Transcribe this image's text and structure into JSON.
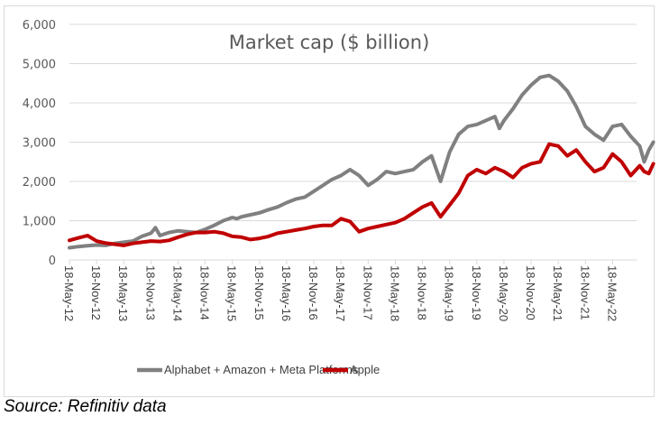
{
  "chart_data": {
    "type": "line",
    "title": "Market cap ($ billion)",
    "xlabel": "",
    "ylabel": "",
    "ylim": [
      0,
      6000
    ],
    "yticks": [
      0,
      1000,
      2000,
      3000,
      4000,
      5000,
      6000
    ],
    "ytick_labels": [
      "0",
      "1,000",
      "2,000",
      "3,000",
      "4,000",
      "5,000",
      "6,000"
    ],
    "xtick_labels": [
      "18-May-12",
      "18-Nov-12",
      "18-May-13",
      "18-Nov-13",
      "18-May-14",
      "18-Nov-14",
      "18-May-15",
      "18-Nov-15",
      "18-May-16",
      "18-Nov-16",
      "18-May-17",
      "18-Nov-17",
      "18-May-18",
      "18-Nov-18",
      "18-May-19",
      "18-Nov-19",
      "18-May-20",
      "18-Nov-20",
      "18-May-21",
      "18-Nov-21",
      "18-May-22"
    ],
    "x_unit": "months since 18-May-12",
    "x_range": [
      0,
      129
    ],
    "grid": "horizontal",
    "legend_position": "bottom",
    "series": [
      {
        "name": "Alphabet + Amazon + Meta Platforms",
        "color": "#808080",
        "x": [
          0,
          2,
          4,
          6,
          8,
          10,
          12,
          14,
          16,
          18,
          19,
          20,
          22,
          24,
          26,
          28,
          30,
          32,
          34,
          36,
          37,
          38,
          40,
          42,
          44,
          46,
          48,
          50,
          52,
          54,
          56,
          58,
          60,
          62,
          64,
          66,
          68,
          70,
          72,
          74,
          76,
          78,
          80,
          82,
          84,
          86,
          88,
          90,
          92,
          94,
          95,
          96,
          98,
          100,
          102,
          104,
          106,
          108,
          110,
          112,
          114,
          116,
          118,
          120,
          122,
          124,
          126,
          127,
          128,
          129
        ],
        "values": [
          310,
          340,
          360,
          380,
          370,
          420,
          450,
          480,
          600,
          680,
          820,
          620,
          700,
          740,
          720,
          700,
          780,
          880,
          1000,
          1080,
          1050,
          1100,
          1150,
          1200,
          1280,
          1350,
          1460,
          1550,
          1600,
          1750,
          1900,
          2050,
          2150,
          2300,
          2150,
          1900,
          2050,
          2250,
          2200,
          2250,
          2300,
          2500,
          2650,
          2000,
          2750,
          3200,
          3400,
          3450,
          3550,
          3650,
          3350,
          3550,
          3850,
          4200,
          4450,
          4650,
          4700,
          4550,
          4300,
          3900,
          3400,
          3200,
          3050,
          3400,
          3450,
          3150,
          2900,
          2500,
          2800,
          3000
        ]
      },
      {
        "name": "Apple",
        "color": "#c00000",
        "x": [
          0,
          2,
          4,
          6,
          8,
          10,
          12,
          14,
          16,
          18,
          20,
          22,
          24,
          26,
          28,
          30,
          32,
          34,
          36,
          38,
          40,
          42,
          44,
          46,
          48,
          50,
          52,
          54,
          56,
          58,
          60,
          62,
          64,
          66,
          68,
          70,
          72,
          74,
          76,
          78,
          80,
          82,
          84,
          86,
          88,
          90,
          92,
          94,
          96,
          98,
          100,
          102,
          104,
          106,
          108,
          110,
          112,
          114,
          116,
          118,
          120,
          122,
          124,
          126,
          127,
          128,
          129
        ],
        "values": [
          500,
          560,
          620,
          480,
          430,
          400,
          370,
          420,
          450,
          480,
          470,
          500,
          580,
          650,
          700,
          700,
          720,
          680,
          600,
          580,
          520,
          550,
          600,
          680,
          720,
          760,
          800,
          850,
          880,
          880,
          1050,
          980,
          720,
          800,
          850,
          900,
          950,
          1050,
          1200,
          1350,
          1450,
          1100,
          1400,
          1700,
          2150,
          2300,
          2200,
          2350,
          2250,
          2100,
          2350,
          2450,
          2500,
          2950,
          2900,
          2650,
          2800,
          2500,
          2250,
          2350,
          2700,
          2500,
          2150,
          2400,
          2250,
          2200,
          2450
        ]
      }
    ]
  },
  "source": "Source: Refinitiv data"
}
